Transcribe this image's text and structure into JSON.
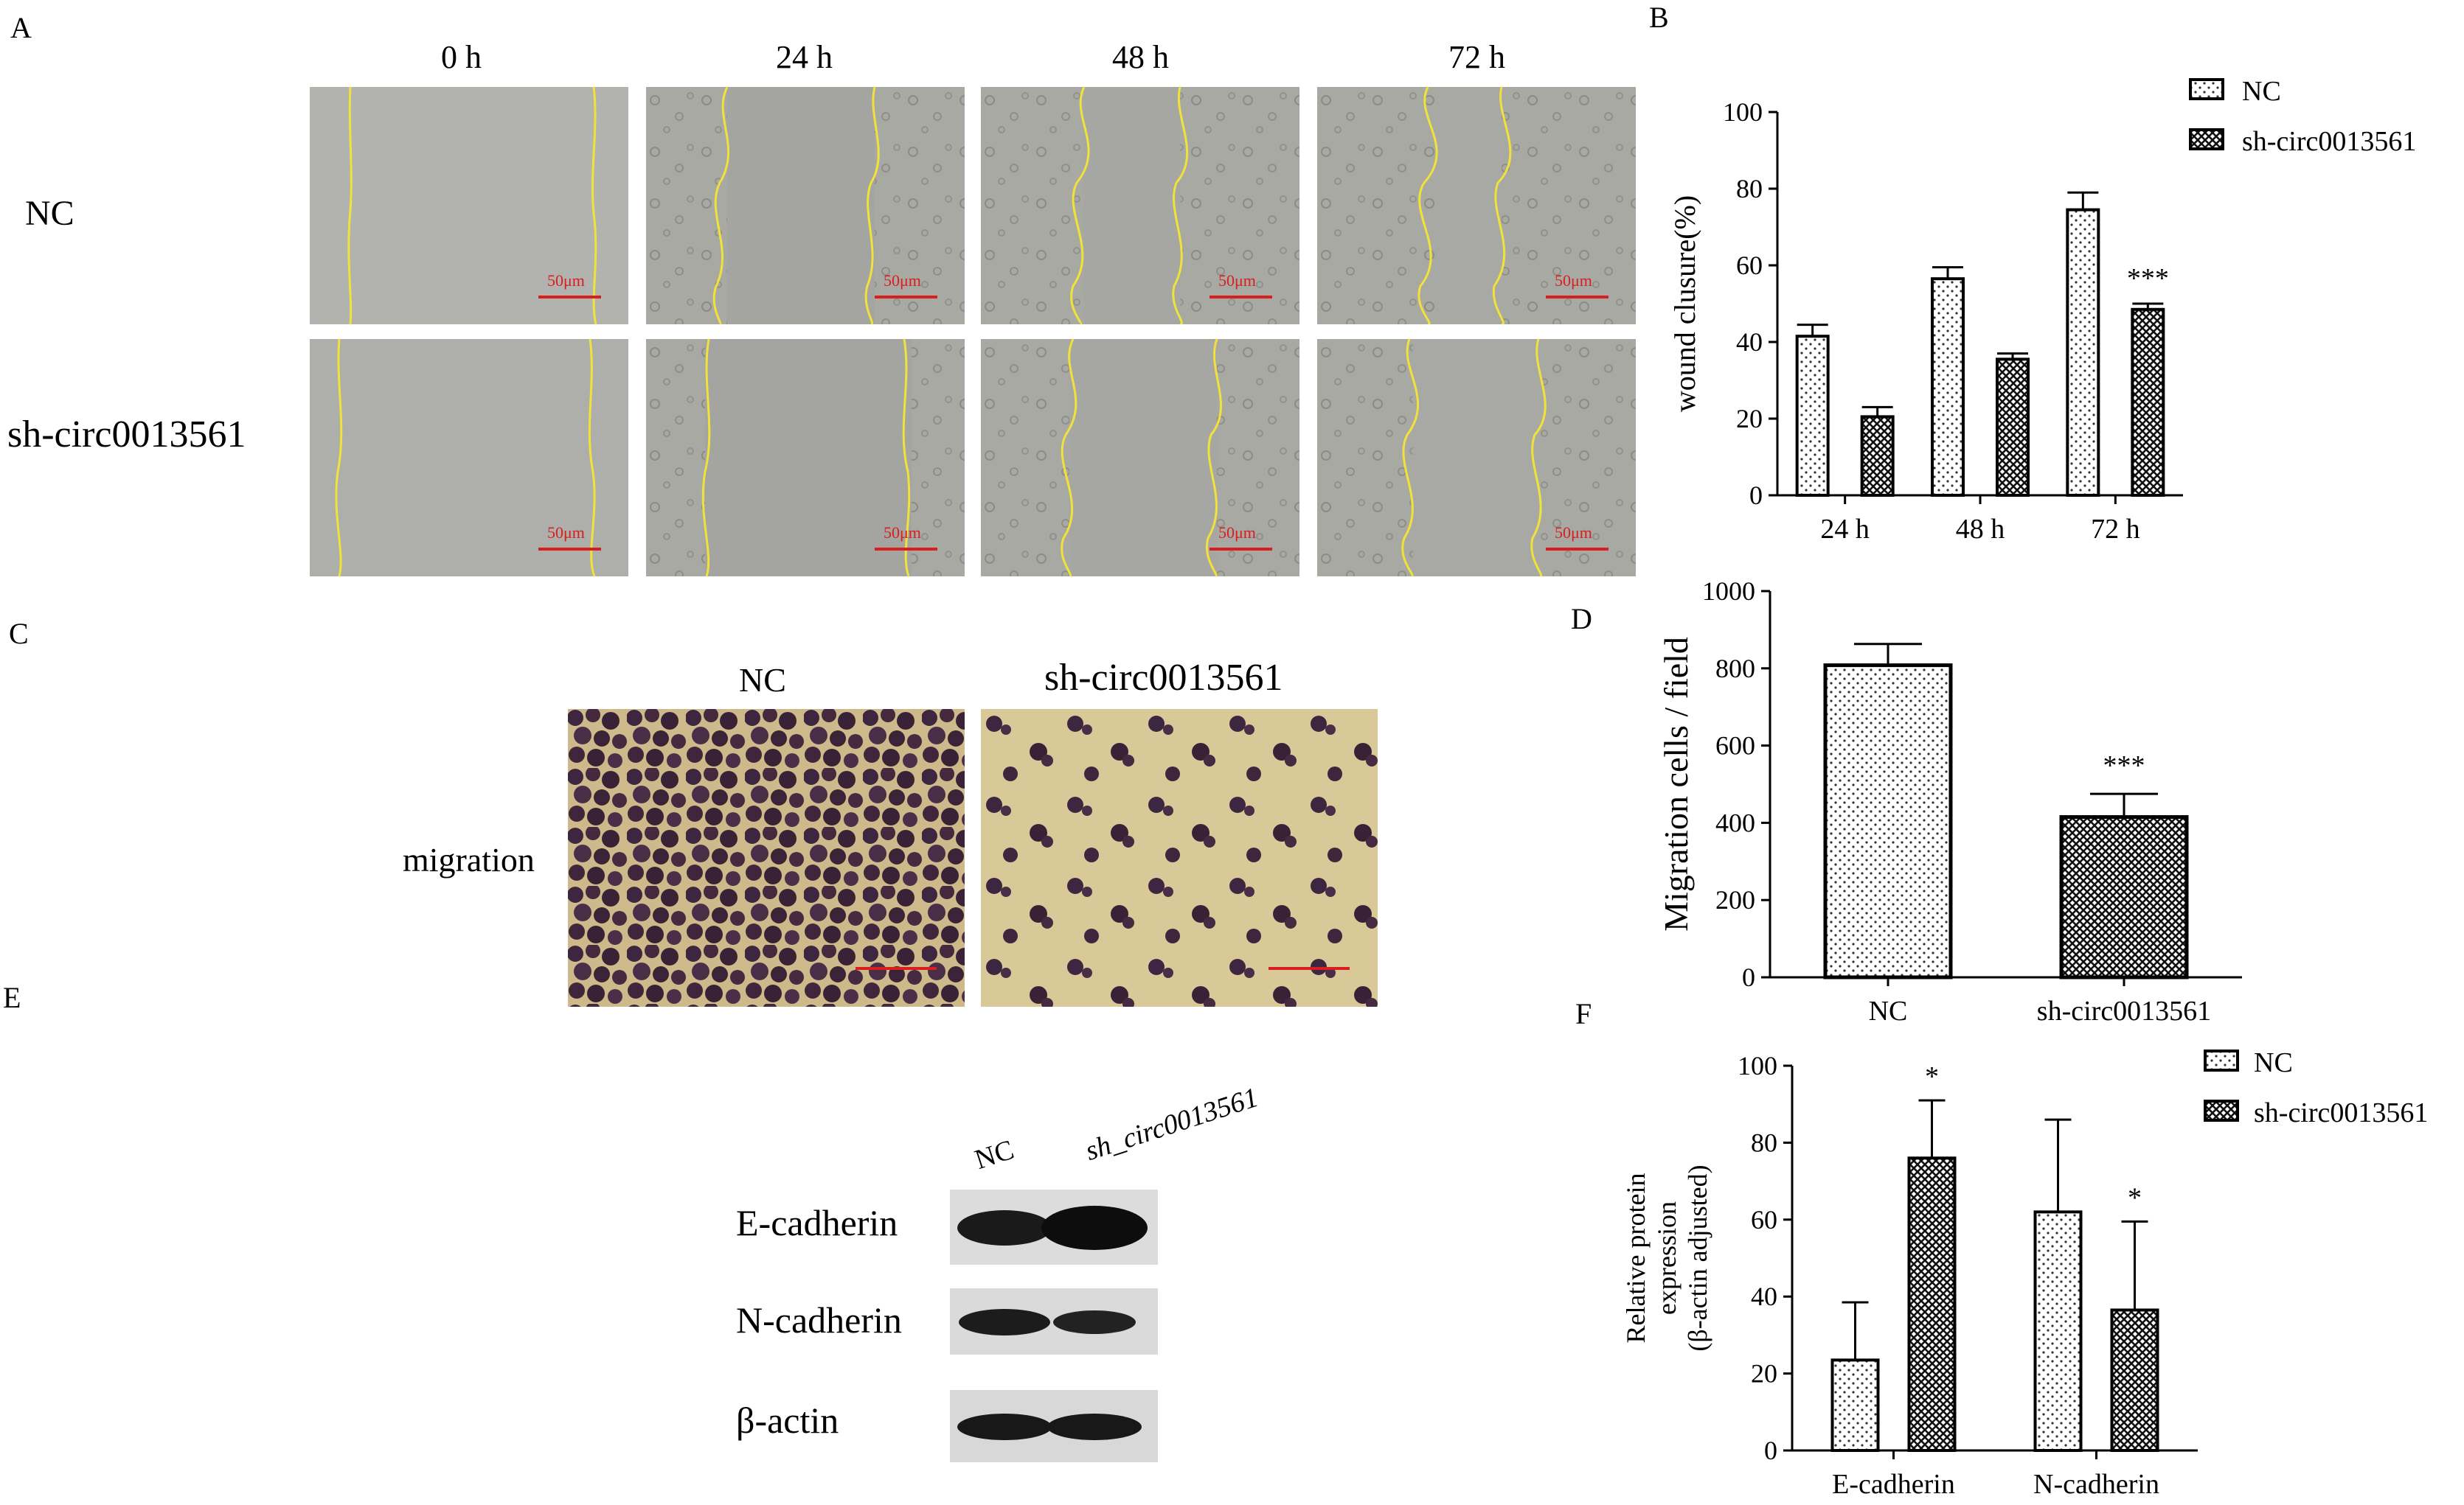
{
  "panel_labels": {
    "A": "A",
    "B": "B",
    "C": "C",
    "D": "D",
    "E": "E",
    "F": "F"
  },
  "panel_a": {
    "timepoints": [
      "0 h",
      "24 h",
      "48 h",
      "72 h"
    ],
    "rows": [
      "NC",
      "sh-circ0013561"
    ],
    "scale_bar": "50μm"
  },
  "panel_c": {
    "columns": [
      "NC",
      "sh-circ0013561"
    ],
    "row_label": "migration"
  },
  "panel_e": {
    "lanes": [
      "NC",
      "sh_circ0013561"
    ],
    "proteins": [
      "E-cadherin",
      "N-cadherin",
      "β-actin"
    ]
  },
  "chart_data": [
    {
      "panel": "B",
      "type": "bar",
      "categories": [
        "24 h",
        "48 h",
        "72 h"
      ],
      "series": [
        {
          "name": "NC",
          "values": [
            41.5,
            56.5,
            74.5
          ],
          "errors": [
            3,
            3,
            4.5
          ],
          "pattern": "dots"
        },
        {
          "name": "sh-circ0013561",
          "values": [
            20.5,
            35.5,
            48.5
          ],
          "errors": [
            2.5,
            1.5,
            1.5
          ],
          "pattern": "crosshatch"
        }
      ],
      "ylabel": "wound clusure(%)",
      "ylim": [
        0,
        100
      ],
      "yticks": [
        0,
        20,
        40,
        60,
        80,
        100
      ],
      "annotations": [
        {
          "category": "72 h",
          "series": "sh-circ0013561",
          "text": "***"
        }
      ],
      "legend": "top-right"
    },
    {
      "panel": "D",
      "type": "bar",
      "categories": [
        "NC",
        "sh-circ0013561"
      ],
      "values": [
        808,
        415
      ],
      "errors": [
        55,
        60
      ],
      "patterns": [
        "dots",
        "crosshatch"
      ],
      "ylabel": "Migration cells / field",
      "ylim": [
        0,
        1000
      ],
      "yticks": [
        0,
        200,
        400,
        600,
        800,
        1000
      ],
      "annotations": [
        {
          "category": "sh-circ0013561",
          "text": "***"
        }
      ]
    },
    {
      "panel": "F",
      "type": "bar",
      "categories": [
        "E-cadherin",
        "N-cadherin"
      ],
      "series": [
        {
          "name": "NC",
          "values": [
            23.5,
            62
          ],
          "errors": [
            15,
            24
          ],
          "pattern": "dots"
        },
        {
          "name": "sh-circ0013561",
          "values": [
            76,
            36.5
          ],
          "errors": [
            15,
            23
          ],
          "pattern": "crosshatch"
        }
      ],
      "ylabel": [
        "Relative protein",
        "expression",
        "(β-actin adjusted)"
      ],
      "ylim": [
        0,
        100
      ],
      "yticks": [
        0,
        20,
        40,
        60,
        80,
        100
      ],
      "annotations": [
        {
          "category": "E-cadherin",
          "series": "sh-circ0013561",
          "text": "*"
        },
        {
          "category": "N-cadherin",
          "series": "sh-circ0013561",
          "text": "*"
        }
      ],
      "legend": "top-right"
    }
  ]
}
